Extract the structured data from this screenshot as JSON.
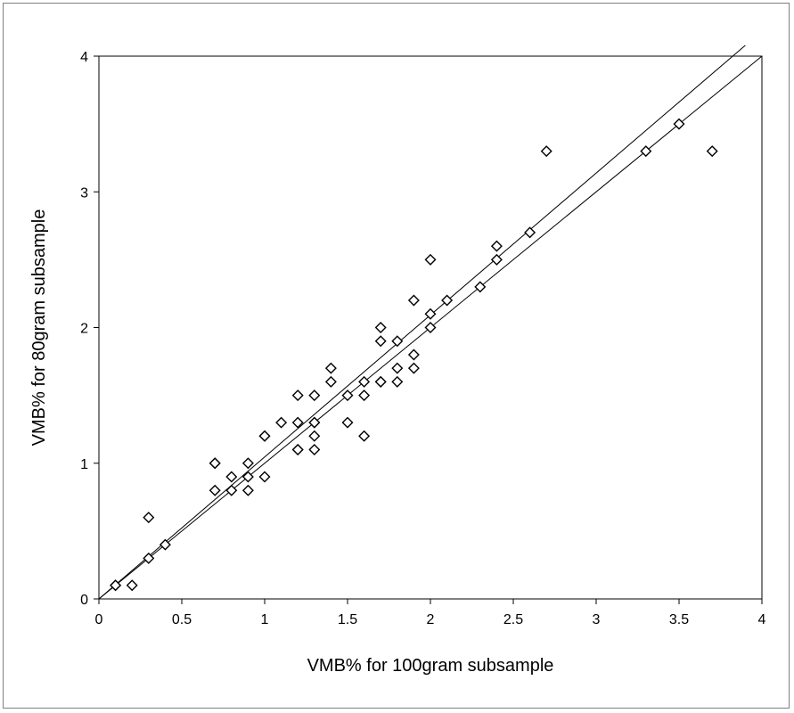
{
  "chart_data": {
    "type": "scatter",
    "title": "",
    "xlabel": "VMB% for 100gram subsample",
    "ylabel": "VMB% for 80gram subsample",
    "xlim": [
      0,
      4
    ],
    "ylim": [
      0,
      4
    ],
    "x_ticks": [
      0,
      0.5,
      1,
      1.5,
      2,
      2.5,
      3,
      3.5,
      4
    ],
    "x_tick_labels": [
      "0",
      "0.5",
      "1",
      "1.5",
      "2",
      "2.5",
      "3",
      "3.5",
      "4"
    ],
    "y_ticks": [
      0,
      1,
      2,
      3,
      4
    ],
    "y_tick_labels": [
      "0",
      "1",
      "2",
      "3",
      "4"
    ],
    "grid": false,
    "legend": "none",
    "marker": "diamond-open",
    "series": [
      {
        "points": [
          [
            0.1,
            0.1
          ],
          [
            0.1,
            0.1
          ],
          [
            0.2,
            0.1
          ],
          [
            0.3,
            0.3
          ],
          [
            0.3,
            0.6
          ],
          [
            0.4,
            0.4
          ],
          [
            0.7,
            1.0
          ],
          [
            0.7,
            1.0
          ],
          [
            0.7,
            0.8
          ],
          [
            0.8,
            0.9
          ],
          [
            0.8,
            0.8
          ],
          [
            0.9,
            1.0
          ],
          [
            0.9,
            0.9
          ],
          [
            0.9,
            0.8
          ],
          [
            1.0,
            1.2
          ],
          [
            1.0,
            1.2
          ],
          [
            1.0,
            0.9
          ],
          [
            1.1,
            1.3
          ],
          [
            1.2,
            1.5
          ],
          [
            1.2,
            1.3
          ],
          [
            1.2,
            1.1
          ],
          [
            1.2,
            1.1
          ],
          [
            1.3,
            1.5
          ],
          [
            1.3,
            1.3
          ],
          [
            1.3,
            1.3
          ],
          [
            1.3,
            1.2
          ],
          [
            1.3,
            1.1
          ],
          [
            1.4,
            1.7
          ],
          [
            1.4,
            1.6
          ],
          [
            1.5,
            1.5
          ],
          [
            1.5,
            1.3
          ],
          [
            1.6,
            1.6
          ],
          [
            1.6,
            1.5
          ],
          [
            1.6,
            1.2
          ],
          [
            1.7,
            2.0
          ],
          [
            1.7,
            1.9
          ],
          [
            1.7,
            1.6
          ],
          [
            1.7,
            1.6
          ],
          [
            1.8,
            1.9
          ],
          [
            1.8,
            1.7
          ],
          [
            1.8,
            1.6
          ],
          [
            1.9,
            2.2
          ],
          [
            1.9,
            1.8
          ],
          [
            1.9,
            1.7
          ],
          [
            2.0,
            2.5
          ],
          [
            2.0,
            2.1
          ],
          [
            2.0,
            2.0
          ],
          [
            2.1,
            2.2
          ],
          [
            2.3,
            2.3
          ],
          [
            2.4,
            2.6
          ],
          [
            2.4,
            2.5
          ],
          [
            2.6,
            2.7
          ],
          [
            2.7,
            3.3
          ],
          [
            3.3,
            3.3
          ],
          [
            3.5,
            3.5
          ],
          [
            3.7,
            3.3
          ]
        ]
      }
    ],
    "lines": [
      {
        "label": "identity",
        "x0": 0,
        "y0": 0,
        "x1": 4,
        "y1": 4
      },
      {
        "label": "fit",
        "x0": 0,
        "y0": 0,
        "x1": 3.9,
        "y1": 4.08
      }
    ]
  }
}
